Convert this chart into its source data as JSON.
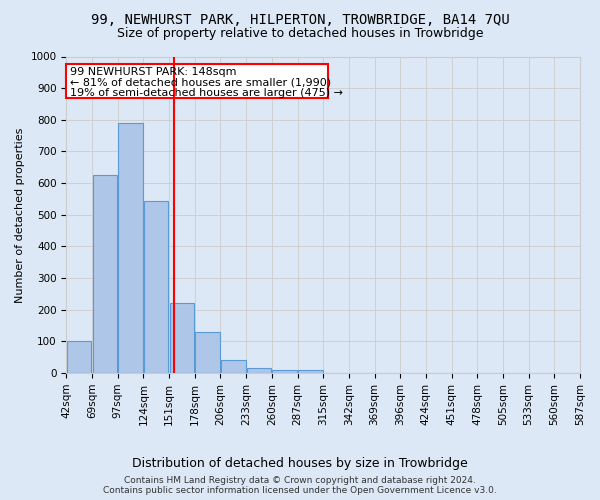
{
  "title": "99, NEWHURST PARK, HILPERTON, TROWBRIDGE, BA14 7QU",
  "subtitle": "Size of property relative to detached houses in Trowbridge",
  "xlabel": "Distribution of detached houses by size in Trowbridge",
  "ylabel": "Number of detached properties",
  "footer_line1": "Contains HM Land Registry data © Crown copyright and database right 2024.",
  "footer_line2": "Contains public sector information licensed under the Open Government Licence v3.0.",
  "bar_heights": [
    100,
    625,
    790,
    545,
    220,
    130,
    40,
    15,
    10,
    10,
    0,
    0,
    0,
    0,
    0,
    0,
    0,
    0,
    0,
    0
  ],
  "bar_color": "#aec6e8",
  "bar_edge_color": "#5b9bd5",
  "x_tick_labels": [
    "42sqm",
    "69sqm",
    "97sqm",
    "124sqm",
    "151sqm",
    "178sqm",
    "206sqm",
    "233sqm",
    "260sqm",
    "287sqm",
    "315sqm",
    "342sqm",
    "369sqm",
    "396sqm",
    "424sqm",
    "451sqm",
    "478sqm",
    "505sqm",
    "533sqm",
    "560sqm",
    "587sqm"
  ],
  "num_bars": 20,
  "ylim": [
    0,
    1000
  ],
  "yticks": [
    0,
    100,
    200,
    300,
    400,
    500,
    600,
    700,
    800,
    900,
    1000
  ],
  "grid_color": "#cccccc",
  "background_color": "#dce8f5",
  "plot_bg_color": "#dce8f5",
  "red_line_x": 3.7,
  "annotation_text_line1": "99 NEWHURST PARK: 148sqm",
  "annotation_text_line2": "← 81% of detached houses are smaller (1,990)",
  "annotation_text_line3": "19% of semi-detached houses are larger (475) →",
  "annotation_box_color": "white",
  "annotation_box_edge_color": "red",
  "red_line_color": "red",
  "title_fontsize": 10,
  "subtitle_fontsize": 9,
  "xlabel_fontsize": 9,
  "ylabel_fontsize": 8,
  "tick_fontsize": 7.5
}
